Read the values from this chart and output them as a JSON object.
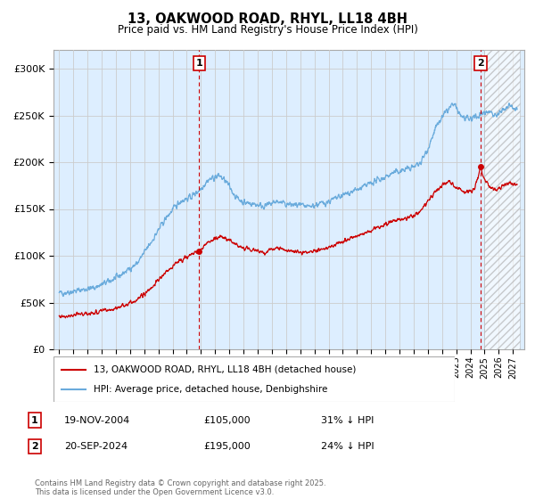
{
  "title": "13, OAKWOOD ROAD, RHYL, LL18 4BH",
  "subtitle": "Price paid vs. HM Land Registry's House Price Index (HPI)",
  "hpi_color": "#6aabdc",
  "hpi_fill_color": "#ddeeff",
  "price_color": "#cc0000",
  "vline_color": "#cc0000",
  "ylim": [
    0,
    320000
  ],
  "yticks": [
    0,
    50000,
    100000,
    150000,
    200000,
    250000,
    300000
  ],
  "ytick_labels": [
    "£0",
    "£50K",
    "£100K",
    "£150K",
    "£200K",
    "£250K",
    "£300K"
  ],
  "sale1_date": "19-NOV-2004",
  "sale1_price": 105000,
  "sale1_hpi_text": "31% ↓ HPI",
  "sale1_label": "1",
  "sale1_x_year": 2004.88,
  "sale2_date": "20-SEP-2024",
  "sale2_price": 195000,
  "sale2_hpi_text": "24% ↓ HPI",
  "sale2_label": "2",
  "sale2_x_year": 2024.72,
  "hatch_start": 2025.0,
  "hatch_end": 2027.5,
  "legend_line1": "13, OAKWOOD ROAD, RHYL, LL18 4BH (detached house)",
  "legend_line2": "HPI: Average price, detached house, Denbighshire",
  "footnote": "Contains HM Land Registry data © Crown copyright and database right 2025.\nThis data is licensed under the Open Government Licence v3.0.",
  "background_color": "#ffffff",
  "grid_color": "#cccccc",
  "xlim_left": 1994.6,
  "xlim_right": 2027.8
}
